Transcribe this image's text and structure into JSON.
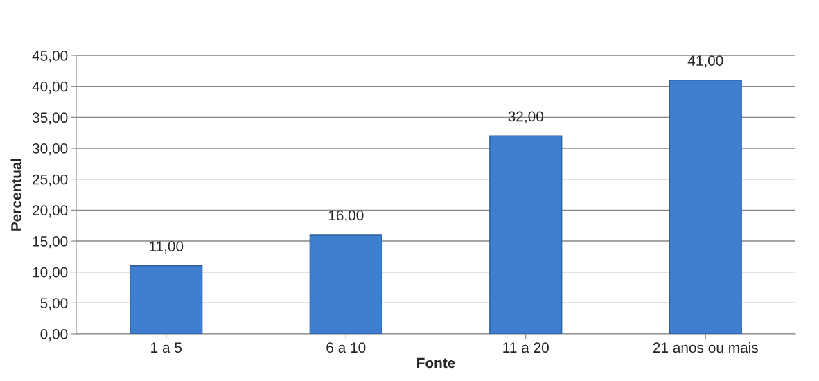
{
  "chart_data": {
    "type": "bar",
    "xlabel": "Fonte",
    "ylabel": "Percentual",
    "categories": [
      "1 a 5",
      "6 a 10",
      "11 a 20",
      "21 anos ou mais"
    ],
    "values": [
      11,
      16,
      32,
      41
    ],
    "color": "#3f7fcf",
    "value_labels": [
      "11,00",
      "16,00",
      "32,00",
      "41,00"
    ],
    "ylim": [
      0,
      45
    ],
    "yticks": [
      {
        "value": 0,
        "label": "0,00"
      },
      {
        "value": 5,
        "label": "5,00"
      },
      {
        "value": 10,
        "label": "10,00"
      },
      {
        "value": 15,
        "label": "15,00"
      },
      {
        "value": 20,
        "label": "20,00"
      },
      {
        "value": 25,
        "label": "25,00"
      },
      {
        "value": 30,
        "label": "30,00"
      },
      {
        "value": 35,
        "label": "35,00"
      },
      {
        "value": 40,
        "label": "40,00"
      },
      {
        "value": 45,
        "label": "45,00"
      }
    ],
    "grid": "y",
    "legend": false
  }
}
